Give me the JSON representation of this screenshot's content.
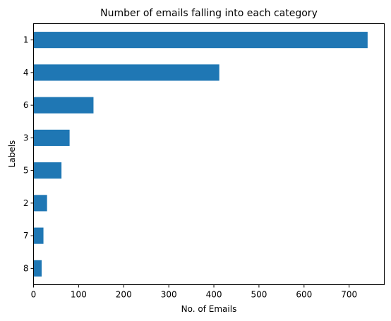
{
  "chart_data": {
    "type": "bar",
    "orientation": "horizontal",
    "title": "Number of emails falling into each category",
    "xlabel": "No. of Emails",
    "ylabel": "Labels",
    "categories": [
      "1",
      "4",
      "6",
      "3",
      "5",
      "2",
      "7",
      "8"
    ],
    "values": [
      741,
      412,
      133,
      80,
      62,
      30,
      22,
      18
    ],
    "xlim": [
      0,
      778
    ],
    "xticks": [
      0,
      100,
      200,
      300,
      400,
      500,
      600,
      700
    ],
    "grid": false,
    "legend": "none",
    "bar_color": "#1f77b4"
  }
}
